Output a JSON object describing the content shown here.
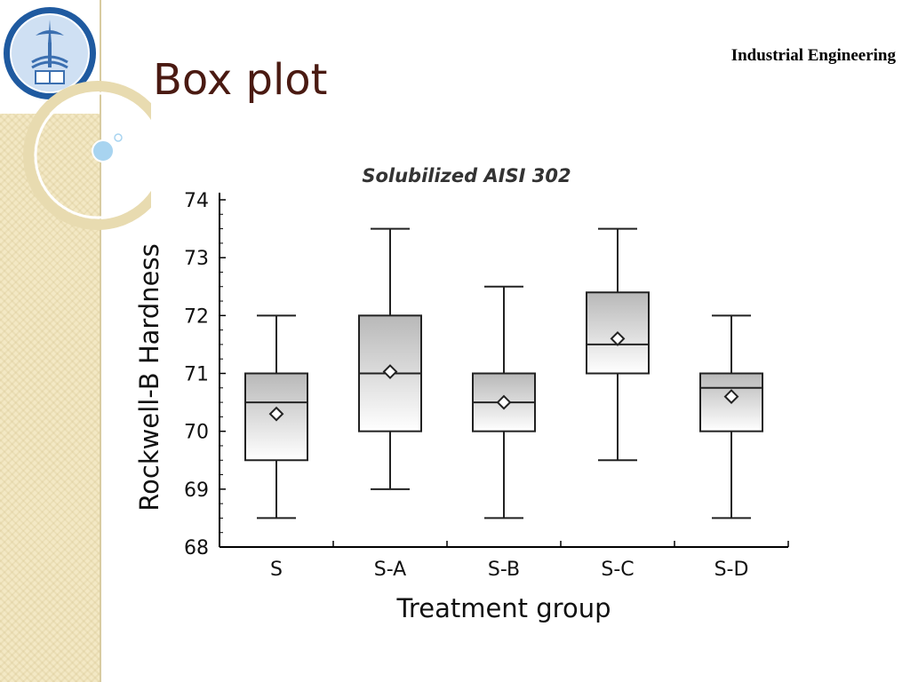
{
  "slide": {
    "title": "Box plot",
    "header_label": "Industrial Engineering"
  },
  "logo": {
    "name": "university-seal"
  },
  "colors": {
    "title": "#4a1a12",
    "sidebar": "#f3e8c4",
    "accent_blue": "#a8d4f0"
  },
  "chart_data": {
    "type": "boxplot",
    "title": "Solubilized AISI 302",
    "xlabel": "Treatment group",
    "ylabel": "Rockwell-B Hardness",
    "ylim": [
      68,
      74
    ],
    "yticks": [
      68,
      69,
      70,
      71,
      72,
      73,
      74
    ],
    "categories": [
      "S",
      "S-A",
      "S-B",
      "S-C",
      "S-D"
    ],
    "boxes": [
      {
        "name": "S",
        "min": 68.5,
        "q1": 69.5,
        "median": 70.5,
        "q3": 71.0,
        "max": 72.0,
        "mean": 70.3
      },
      {
        "name": "S-A",
        "min": 69.0,
        "q1": 70.0,
        "median": 71.0,
        "q3": 72.0,
        "max": 73.5,
        "mean": 71.03
      },
      {
        "name": "S-B",
        "min": 68.5,
        "q1": 70.0,
        "median": 70.5,
        "q3": 71.0,
        "max": 72.5,
        "mean": 70.5
      },
      {
        "name": "S-C",
        "min": 69.5,
        "q1": 71.0,
        "median": 71.5,
        "q3": 72.4,
        "max": 73.5,
        "mean": 71.6
      },
      {
        "name": "S-D",
        "min": 68.5,
        "q1": 70.0,
        "median": 70.75,
        "q3": 71.0,
        "max": 72.0,
        "mean": 70.6
      }
    ]
  }
}
